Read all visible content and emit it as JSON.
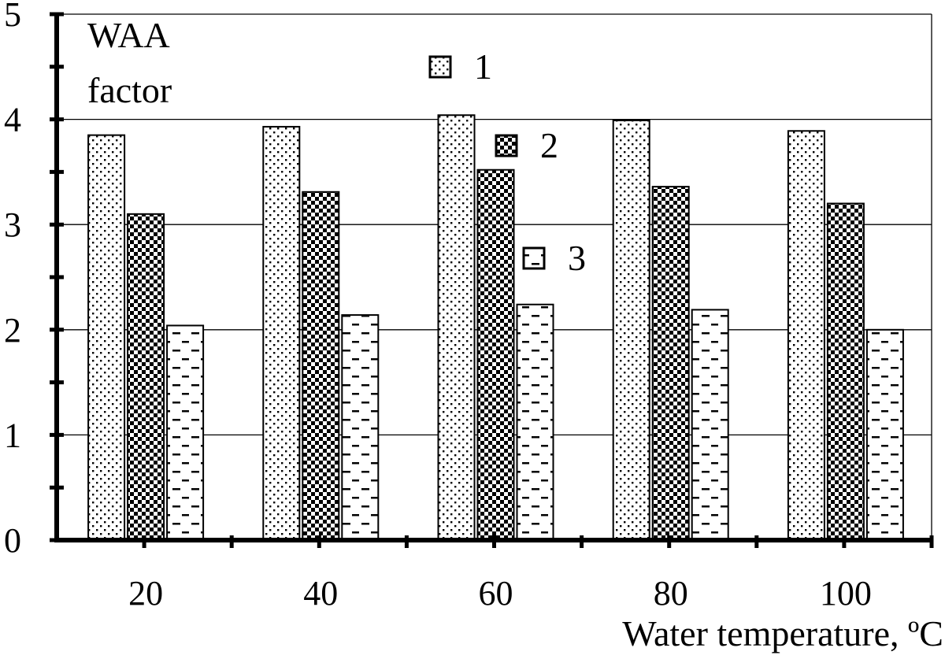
{
  "chart_data": {
    "type": "bar",
    "categories": [
      "20",
      "40",
      "60",
      "80",
      "100"
    ],
    "series": [
      {
        "name": "1",
        "values": [
          3.85,
          3.93,
          4.04,
          3.99,
          3.89
        ]
      },
      {
        "name": "2",
        "values": [
          3.1,
          3.31,
          3.52,
          3.36,
          3.2
        ]
      },
      {
        "name": "3",
        "values": [
          2.04,
          2.14,
          2.24,
          2.19,
          2.0
        ]
      }
    ],
    "yticks": [
      "0",
      "1",
      "2",
      "3",
      "4",
      "5"
    ],
    "ylim": [
      0,
      5
    ],
    "ylabel_line1": "WAA",
    "ylabel_line2": "factor",
    "xlabel": "Water  temperature, ºC",
    "grid": true,
    "legend_position": "top-center"
  }
}
